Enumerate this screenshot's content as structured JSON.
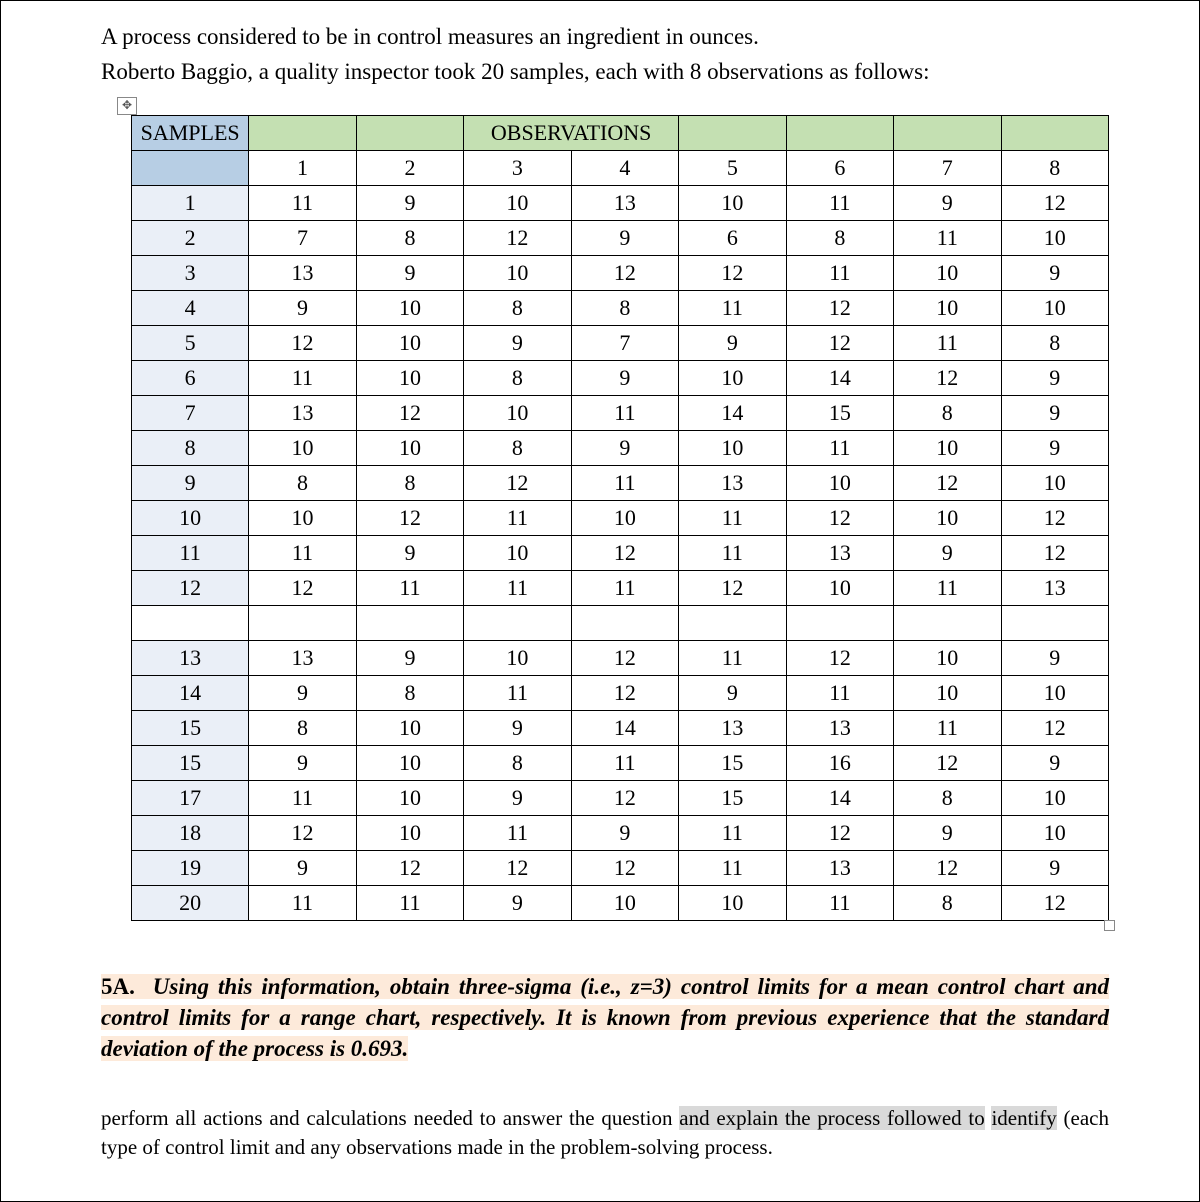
{
  "intro": {
    "line1": "A process considered to be in control measures an ingredient in ounces.",
    "line2": "Roberto Baggio, a quality inspector took 20 samples, each with 8 observations as follows:"
  },
  "table": {
    "samples_header": "SAMPLES",
    "observations_header": "OBSERVATIONS",
    "col_labels": [
      "1",
      "2",
      "3",
      "4",
      "5",
      "6",
      "7",
      "8"
    ],
    "rows": [
      {
        "label": "1",
        "vals": [
          "11",
          "9",
          "10",
          "13",
          "10",
          "11",
          "9",
          "12"
        ]
      },
      {
        "label": "2",
        "vals": [
          "7",
          "8",
          "12",
          "9",
          "6",
          "8",
          "11",
          "10"
        ]
      },
      {
        "label": "3",
        "vals": [
          "13",
          "9",
          "10",
          "12",
          "12",
          "11",
          "10",
          "9"
        ]
      },
      {
        "label": "4",
        "vals": [
          "9",
          "10",
          "8",
          "8",
          "11",
          "12",
          "10",
          "10"
        ]
      },
      {
        "label": "5",
        "vals": [
          "12",
          "10",
          "9",
          "7",
          "9",
          "12",
          "11",
          "8"
        ]
      },
      {
        "label": "6",
        "vals": [
          "11",
          "10",
          "8",
          "9",
          "10",
          "14",
          "12",
          "9"
        ]
      },
      {
        "label": "7",
        "vals": [
          "13",
          "12",
          "10",
          "11",
          "14",
          "15",
          "8",
          "9"
        ]
      },
      {
        "label": "8",
        "vals": [
          "10",
          "10",
          "8",
          "9",
          "10",
          "11",
          "10",
          "9"
        ]
      },
      {
        "label": "9",
        "vals": [
          "8",
          "8",
          "12",
          "11",
          "13",
          "10",
          "12",
          "10"
        ]
      },
      {
        "label": "10",
        "vals": [
          "10",
          "12",
          "11",
          "10",
          "11",
          "12",
          "10",
          "12"
        ]
      },
      {
        "label": "11",
        "vals": [
          "11",
          "9",
          "10",
          "12",
          "11",
          "13",
          "9",
          "12"
        ]
      }
    ],
    "row12": {
      "label": "12",
      "vals": [
        "12",
        "11",
        "11",
        "11",
        "12",
        "10",
        "11",
        "13"
      ]
    },
    "rows2": [
      {
        "label": "13",
        "vals": [
          "13",
          "9",
          "10",
          "12",
          "11",
          "12",
          "10",
          "9"
        ]
      },
      {
        "label": "14",
        "vals": [
          "9",
          "8",
          "11",
          "12",
          "9",
          "11",
          "10",
          "10"
        ]
      },
      {
        "label": "15",
        "vals": [
          "8",
          "10",
          "9",
          "14",
          "13",
          "13",
          "11",
          "12"
        ]
      },
      {
        "label": "15",
        "vals": [
          "9",
          "10",
          "8",
          "11",
          "15",
          "16",
          "12",
          "9"
        ]
      },
      {
        "label": "17",
        "vals": [
          "11",
          "10",
          "9",
          "12",
          "15",
          "14",
          "8",
          "10"
        ]
      },
      {
        "label": "18",
        "vals": [
          "12",
          "10",
          "11",
          "9",
          "11",
          "12",
          "9",
          "10"
        ]
      },
      {
        "label": "19",
        "vals": [
          "9",
          "12",
          "12",
          "12",
          "11",
          "13",
          "12",
          "9"
        ]
      },
      {
        "label": "20",
        "vals": [
          "11",
          "11",
          "9",
          "10",
          "10",
          "11",
          "8",
          "12"
        ]
      }
    ],
    "header_bg_samples": "#b7cee4",
    "header_bg_obs": "#c4e0b2",
    "rownum_bg": "#eaeff7"
  },
  "q5a": {
    "label": "5A.",
    "text": "Using this information, obtain three-sigma (i.e., z=3) control limits for a mean control chart and control limits for a range chart, respectively. It is known from previous experience that the standard deviation of the process is 0.693.",
    "highlight_color": "#fdeada"
  },
  "instruction": {
    "pre": "perform all actions and calculations needed to answer the question ",
    "hl1": "and explain the process followed to",
    "mid_break": " ",
    "hl2": "identify",
    "post": " (each type of control limit and any observations made in the problem-solving process.",
    "highlight_color": "#d9d9d9"
  }
}
